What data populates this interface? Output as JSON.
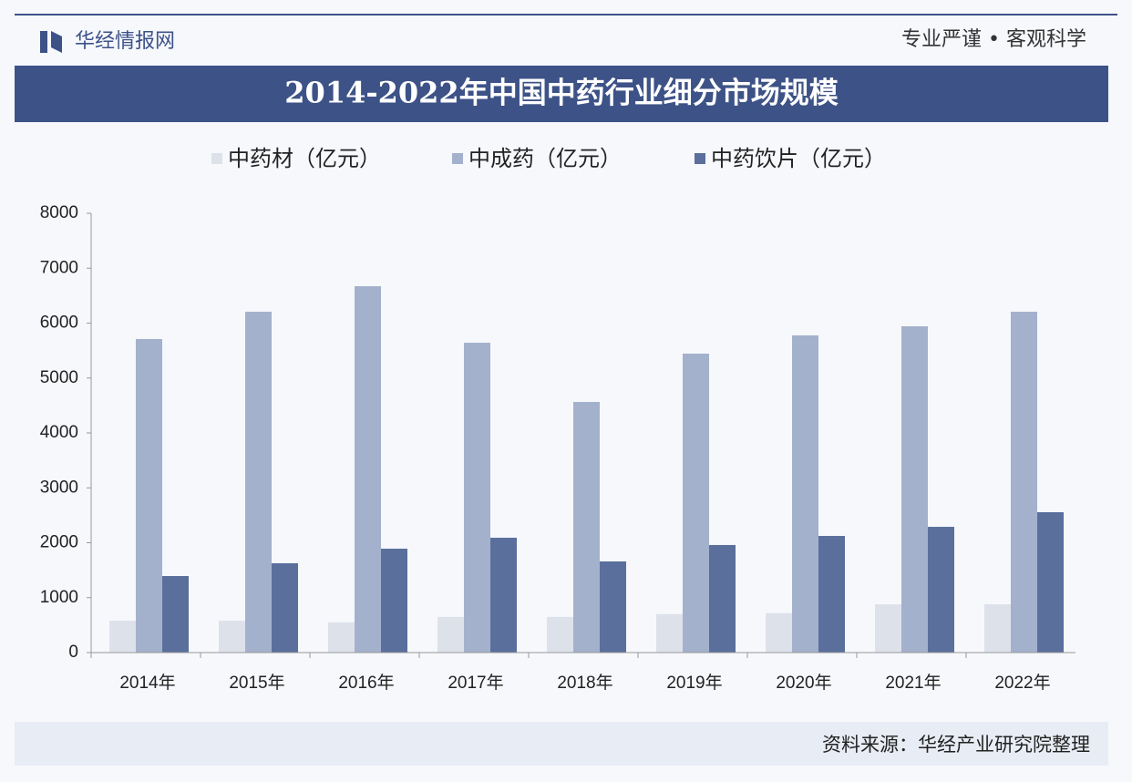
{
  "header": {
    "logo": "华经情报网",
    "slogan": "专业严谨 • 客观科学"
  },
  "chart_data": {
    "type": "bar",
    "title": "2014-2022年中国中药行业细分市场规模",
    "categories": [
      "2014年",
      "2015年",
      "2016年",
      "2017年",
      "2018年",
      "2019年",
      "2020年",
      "2021年",
      "2022年"
    ],
    "series": [
      {
        "name": "中药材（亿元）",
        "color": "#dde1ea",
        "values": [
          580,
          580,
          550,
          650,
          650,
          700,
          720,
          880,
          880
        ]
      },
      {
        "name": "中成药（亿元）",
        "color": "#a3b1cc",
        "values": [
          5710,
          6207,
          6672,
          5643,
          4564,
          5444,
          5776,
          5942,
          6207
        ]
      },
      {
        "name": "中药饮片（亿元）",
        "color": "#5a6f9c",
        "values": [
          1394,
          1627,
          1892,
          2091,
          1660,
          1959,
          2124,
          2290,
          2556
        ]
      }
    ],
    "ylim": [
      0,
      8000
    ],
    "yticks": [
      0,
      1000,
      2000,
      3000,
      4000,
      5000,
      6000,
      7000,
      8000
    ]
  },
  "source": "资料来源：华经产业研究院整理"
}
